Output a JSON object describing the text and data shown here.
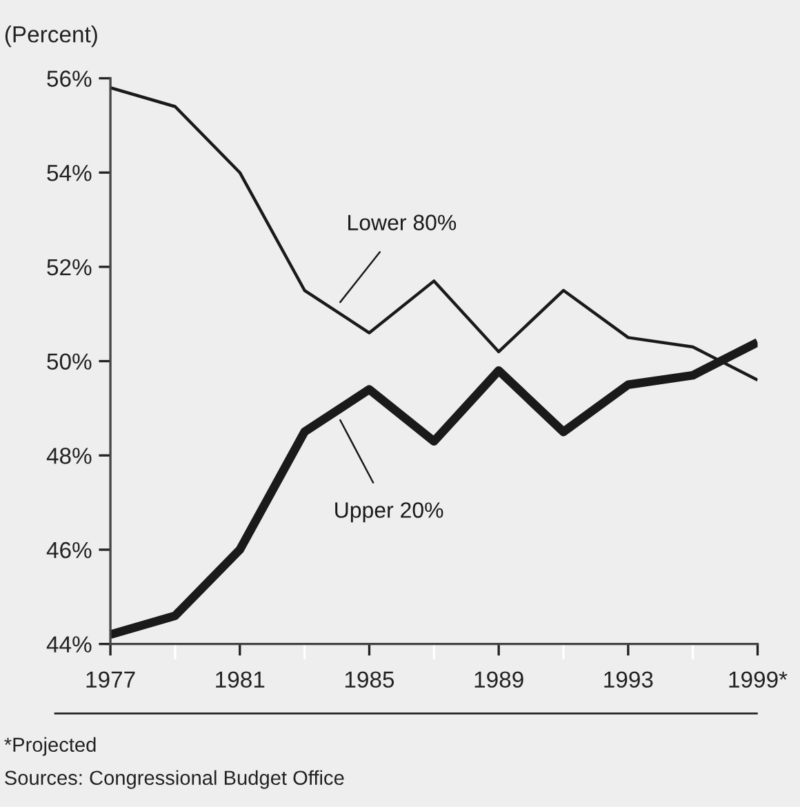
{
  "chart_data": {
    "type": "line",
    "ylabel": "(Percent)",
    "categories": [
      "1977",
      null,
      "1981",
      null,
      "1985",
      null,
      "1989",
      null,
      "1993",
      null,
      "1999*"
    ],
    "series": [
      {
        "name": "Lower 80%",
        "color": "#1a1a1a",
        "values": [
          55.8,
          55.4,
          54.0,
          51.5,
          50.6,
          51.7,
          50.2,
          51.5,
          50.5,
          50.3,
          49.6
        ]
      },
      {
        "name": "Upper 20%",
        "color": "#1a1a1a",
        "values": [
          44.2,
          44.6,
          46.0,
          48.5,
          49.4,
          48.3,
          49.8,
          48.5,
          49.5,
          49.7,
          50.4
        ]
      }
    ],
    "ylim": [
      44,
      56
    ],
    "yticks": [
      {
        "value": 44,
        "label": "44%"
      },
      {
        "value": 46,
        "label": "46%"
      },
      {
        "value": 48,
        "label": "48%"
      },
      {
        "value": 50,
        "label": "50%"
      },
      {
        "value": 52,
        "label": "52%"
      },
      {
        "value": 54,
        "label": "54%"
      },
      {
        "value": 56,
        "label": "56%"
      }
    ],
    "grid": false,
    "marker": "none",
    "annotations": [
      "*Projected",
      "Sources: Congressional Budget Office"
    ]
  }
}
